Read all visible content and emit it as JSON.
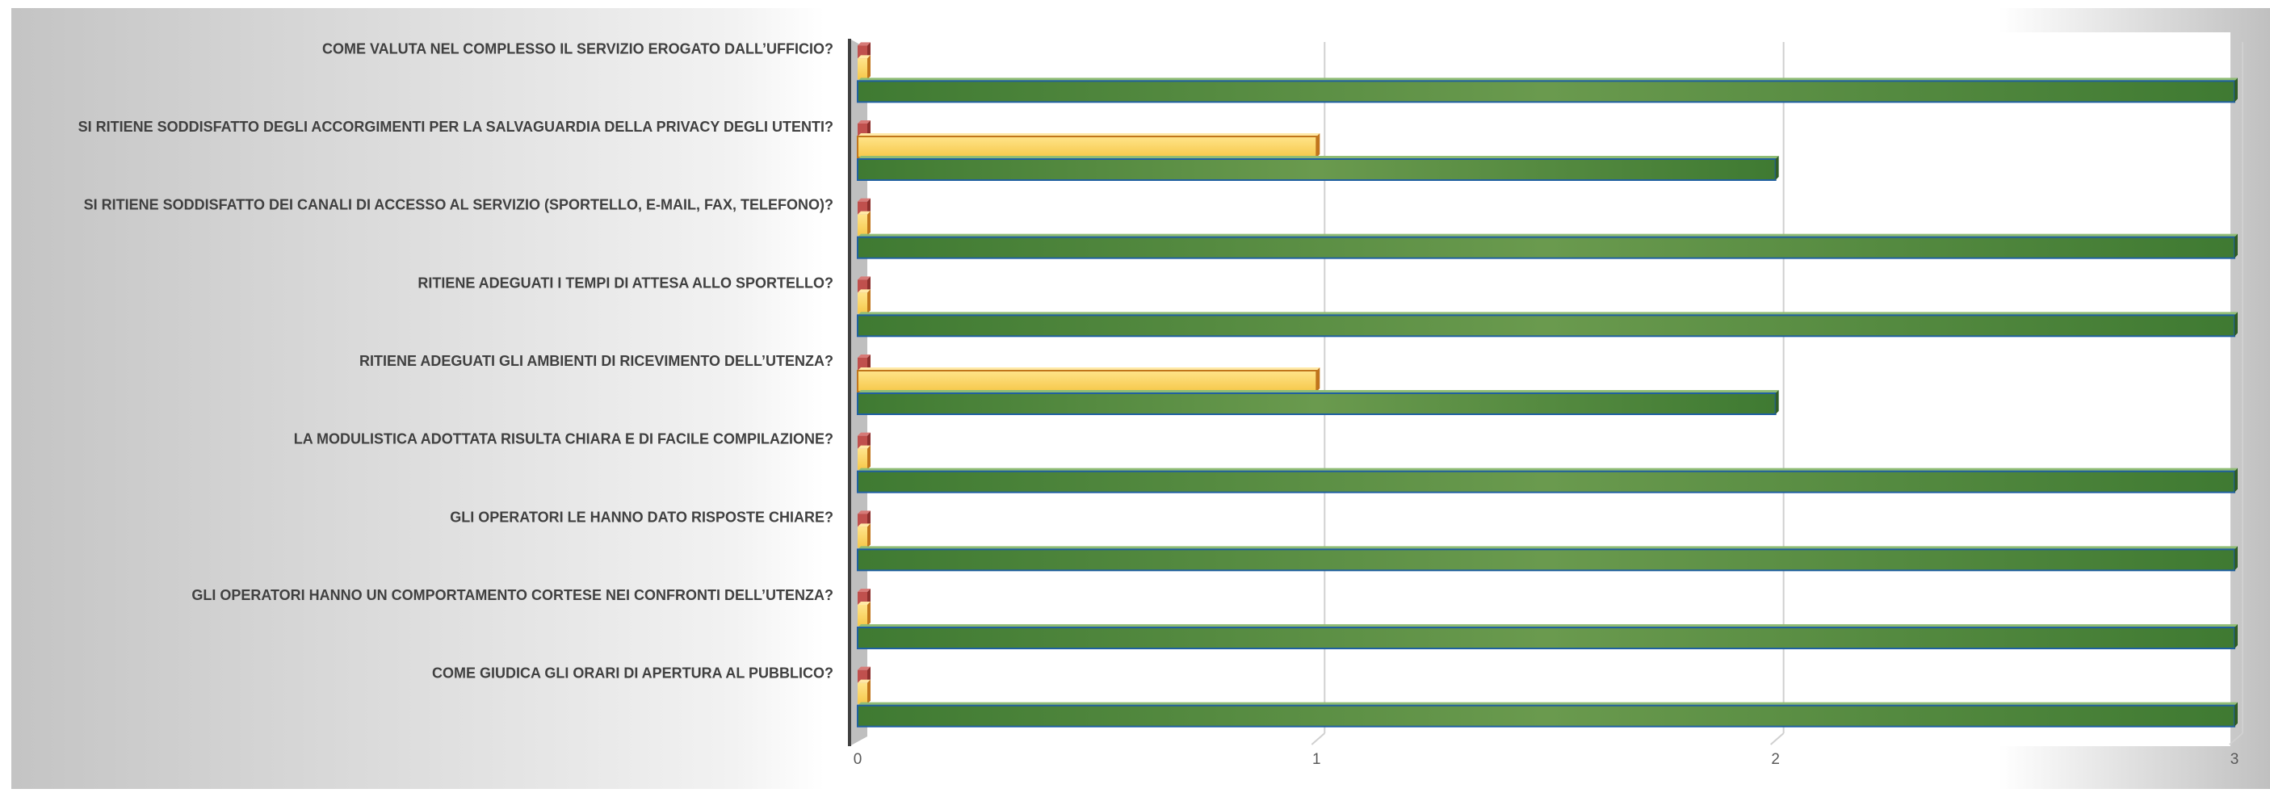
{
  "chart_data": {
    "type": "bar",
    "orientation": "horizontal",
    "style": "3d",
    "grid": true,
    "xlim": [
      0,
      3
    ],
    "x_ticks": [
      "0",
      "1",
      "2",
      "3"
    ],
    "categories": [
      "COME GIUDICA GLI ORARI DI APERTURA AL PUBBLICO?",
      "GLI OPERATORI HANNO UN COMPORTAMENTO CORTESE NEI CONFRONTI DELL’UTENZA?",
      "GLI OPERATORI LE HANNO DATO RISPOSTE CHIARE?",
      "LA MODULISTICA ADOTTATA RISULTA CHIARA E DI FACILE COMPILAZIONE?",
      "RITIENE ADEGUATI GLI AMBIENTI DI RICEVIMENTO DELL’UTENZA?",
      "RITIENE ADEGUATI I TEMPI DI ATTESA ALLO SPORTELLO?",
      "SI RITIENE SODDISFATTO DEI CANALI DI ACCESSO AL SERVIZIO (SPORTELLO, E-MAIL, FAX, TELEFONO)?",
      "SI RITIENE SODDISFATTO DEGLI ACCORGIMENTI PER LA SALVAGUARDIA DELLA PRIVACY DEGLI UTENTI?",
      "COME VALUTA NEL COMPLESSO IL SERVIZIO EROGATO DALL’UFFICIO?"
    ],
    "series": [
      {
        "values": [
          0,
          0,
          0,
          0,
          0,
          0,
          0,
          0,
          0
        ],
        "color": "#c0504d"
      },
      {
        "values": [
          0,
          0,
          0,
          0,
          1,
          0,
          0,
          1,
          0
        ],
        "color": "#fcd05a"
      },
      {
        "values": [
          3,
          3,
          3,
          3,
          2,
          3,
          3,
          2,
          3
        ],
        "color": "#4e8a3a"
      }
    ]
  }
}
